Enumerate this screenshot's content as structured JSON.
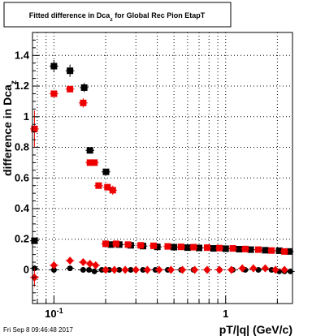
{
  "chart_data": {
    "type": "scatter",
    "title": "Fitted difference in Dca_z for Global Rec Pion EtapT",
    "xlabel": "pT/|q| (GeV/c)",
    "ylabel": "difference in Dca_z",
    "xscale": "log",
    "xlim": [
      0.075,
      2.45
    ],
    "ylim": [
      -0.22,
      1.55
    ],
    "grid": true,
    "x_tick_labels": [
      {
        "v": 0.1,
        "l": "10^-1"
      },
      {
        "v": 1,
        "l": "1"
      }
    ],
    "y_tick_labels": [
      "0",
      "0.2",
      "0.4",
      "0.6",
      "0.8",
      "1",
      "1.2",
      "1.4"
    ],
    "y_ticks": [
      0,
      0.2,
      0.4,
      0.6,
      0.8,
      1.0,
      1.2,
      1.4
    ],
    "series": [
      {
        "color": "#000000",
        "marker": "square",
        "points": [
          {
            "x": 0.077,
            "y": 0.19,
            "yerr": 0.0
          },
          {
            "x": 0.1,
            "y": 1.33,
            "yerr": 0.04
          },
          {
            "x": 0.124,
            "y": 1.3,
            "yerr": 0.04
          },
          {
            "x": 0.15,
            "y": 1.19,
            "yerr": 0.03
          },
          {
            "x": 0.162,
            "y": 0.78,
            "yerr": 0.02
          },
          {
            "x": 0.201,
            "y": 0.64,
            "yerr": 0.0
          },
          {
            "x": 0.215,
            "y": 0.165,
            "yerr": 0.0
          },
          {
            "x": 0.24,
            "y": 0.165,
            "yerr": 0.0
          },
          {
            "x": 0.28,
            "y": 0.16,
            "yerr": 0.0
          },
          {
            "x": 0.33,
            "y": 0.155,
            "yerr": 0.0
          },
          {
            "x": 0.4,
            "y": 0.15,
            "yerr": 0.0
          },
          {
            "x": 0.5,
            "y": 0.148,
            "yerr": 0.0
          },
          {
            "x": 0.6,
            "y": 0.145,
            "yerr": 0.0
          },
          {
            "x": 0.7,
            "y": 0.143,
            "yerr": 0.0
          },
          {
            "x": 0.85,
            "y": 0.14,
            "yerr": 0.0
          },
          {
            "x": 1.0,
            "y": 0.138,
            "yerr": 0.0
          },
          {
            "x": 1.2,
            "y": 0.135,
            "yerr": 0.0
          },
          {
            "x": 1.4,
            "y": 0.132,
            "yerr": 0.0
          },
          {
            "x": 1.7,
            "y": 0.128,
            "yerr": 0.0
          },
          {
            "x": 2.05,
            "y": 0.125,
            "yerr": 0.0
          },
          {
            "x": 2.35,
            "y": 0.12,
            "yerr": 0.0
          }
        ]
      },
      {
        "color": "#ee0000",
        "marker": "square",
        "points": [
          {
            "x": 0.077,
            "y": 0.92,
            "yerr": 0.12
          },
          {
            "x": 0.1,
            "y": 1.15,
            "yerr": 0.0
          },
          {
            "x": 0.124,
            "y": 1.18,
            "yerr": 0.02
          },
          {
            "x": 0.148,
            "y": 1.09,
            "yerr": 0.03
          },
          {
            "x": 0.162,
            "y": 0.7,
            "yerr": 0.02
          },
          {
            "x": 0.172,
            "y": 0.7,
            "yerr": 0.0
          },
          {
            "x": 0.182,
            "y": 0.55,
            "yerr": 0.0
          },
          {
            "x": 0.205,
            "y": 0.54,
            "yerr": 0.02
          },
          {
            "x": 0.22,
            "y": 0.52,
            "yerr": 0.03
          },
          {
            "x": 0.2,
            "y": 0.17,
            "yerr": 0.0
          },
          {
            "x": 0.23,
            "y": 0.17,
            "yerr": 0.0
          },
          {
            "x": 0.27,
            "y": 0.165,
            "yerr": 0.0
          },
          {
            "x": 0.32,
            "y": 0.16,
            "yerr": 0.0
          },
          {
            "x": 0.38,
            "y": 0.157,
            "yerr": 0.0
          },
          {
            "x": 0.46,
            "y": 0.153,
            "yerr": 0.0
          },
          {
            "x": 0.55,
            "y": 0.15,
            "yerr": 0.0
          },
          {
            "x": 0.65,
            "y": 0.148,
            "yerr": 0.0
          },
          {
            "x": 0.78,
            "y": 0.145,
            "yerr": 0.0
          },
          {
            "x": 0.92,
            "y": 0.142,
            "yerr": 0.0
          },
          {
            "x": 1.1,
            "y": 0.14,
            "yerr": 0.0
          },
          {
            "x": 1.3,
            "y": 0.136,
            "yerr": 0.0
          },
          {
            "x": 1.55,
            "y": 0.132,
            "yerr": 0.0
          },
          {
            "x": 1.85,
            "y": 0.126,
            "yerr": 0.0
          },
          {
            "x": 2.2,
            "y": 0.12,
            "yerr": 0.0
          }
        ]
      },
      {
        "color": "#000000",
        "marker": "circle",
        "points": [
          {
            "x": 0.077,
            "y": 0.01
          },
          {
            "x": 0.1,
            "y": 0.0
          },
          {
            "x": 0.124,
            "y": 0.01
          },
          {
            "x": 0.148,
            "y": 0.0
          },
          {
            "x": 0.16,
            "y": 0.0
          },
          {
            "x": 0.172,
            "y": -0.01
          },
          {
            "x": 0.19,
            "y": 0.0
          },
          {
            "x": 0.21,
            "y": 0.0
          },
          {
            "x": 0.24,
            "y": 0.0
          },
          {
            "x": 0.28,
            "y": 0.0
          },
          {
            "x": 0.33,
            "y": 0.0
          },
          {
            "x": 0.39,
            "y": 0.0
          },
          {
            "x": 0.46,
            "y": 0.0
          },
          {
            "x": 0.55,
            "y": 0.0
          },
          {
            "x": 0.65,
            "y": 0.0
          },
          {
            "x": 0.78,
            "y": 0.0
          },
          {
            "x": 0.92,
            "y": 0.0
          },
          {
            "x": 1.1,
            "y": 0.0
          },
          {
            "x": 1.3,
            "y": 0.0
          },
          {
            "x": 1.55,
            "y": 0.0
          },
          {
            "x": 1.85,
            "y": 0.0
          },
          {
            "x": 2.05,
            "y": -0.01
          },
          {
            "x": 2.2,
            "y": -0.01
          },
          {
            "x": 2.38,
            "y": -0.01
          }
        ]
      },
      {
        "color": "#ee0000",
        "marker": "diamond",
        "points": [
          {
            "x": 0.077,
            "y": -0.05,
            "yerr": 0.06
          },
          {
            "x": 0.1,
            "y": 0.03
          },
          {
            "x": 0.124,
            "y": 0.06
          },
          {
            "x": 0.148,
            "y": 0.05
          },
          {
            "x": 0.162,
            "y": 0.04
          },
          {
            "x": 0.175,
            "y": 0.03
          },
          {
            "x": 0.2,
            "y": 0.0
          },
          {
            "x": 0.225,
            "y": 0.0
          },
          {
            "x": 0.26,
            "y": 0.0
          },
          {
            "x": 0.3,
            "y": 0.0
          },
          {
            "x": 0.35,
            "y": 0.0
          },
          {
            "x": 0.41,
            "y": 0.0
          },
          {
            "x": 0.48,
            "y": 0.0
          },
          {
            "x": 0.56,
            "y": 0.0
          },
          {
            "x": 0.66,
            "y": 0.0
          },
          {
            "x": 0.78,
            "y": 0.0
          },
          {
            "x": 0.92,
            "y": 0.0
          },
          {
            "x": 1.08,
            "y": 0.0
          },
          {
            "x": 1.25,
            "y": 0.01
          },
          {
            "x": 1.45,
            "y": 0.01
          },
          {
            "x": 1.7,
            "y": 0.01
          },
          {
            "x": 1.95,
            "y": 0.0
          },
          {
            "x": 2.2,
            "y": 0.0
          }
        ]
      }
    ]
  },
  "footer": {
    "timestamp": "Fri Sep  8 09:46:48 2017"
  }
}
